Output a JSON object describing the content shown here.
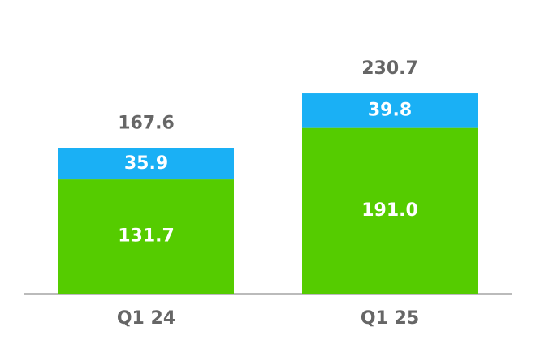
{
  "chart_data": {
    "type": "stacked_bar",
    "categories": [
      "Q1 24",
      "Q1 25"
    ],
    "series": [
      {
        "color": "#55cc00",
        "values": [
          131.7,
          191.0
        ],
        "value_labels": [
          "131.7",
          "191.0"
        ]
      },
      {
        "color": "#1ab0f5",
        "values": [
          35.9,
          39.8
        ]
      }
    ],
    "totals": [
      167.6,
      230.7
    ]
  }
}
